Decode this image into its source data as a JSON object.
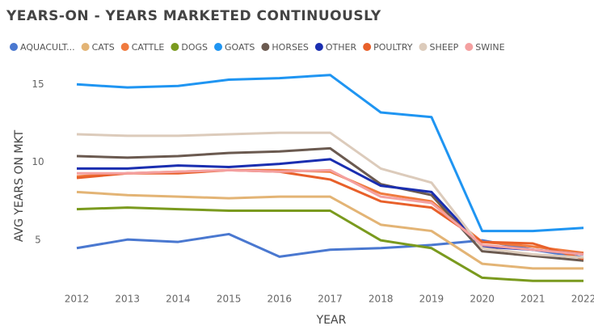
{
  "chart_data": {
    "type": "line",
    "title": "YEARS-ON - YEARS MARKETED CONTINUOUSLY",
    "x_label": "YEAR",
    "y_label": "AVG YEARS ON MKT",
    "x": [
      2012,
      2013,
      2014,
      2015,
      2016,
      2017,
      2018,
      2019,
      2020,
      2021,
      2022
    ],
    "xlim": [
      2012,
      2022
    ],
    "xticks": [
      2012,
      2013,
      2014,
      2015,
      2016,
      2017,
      2018,
      2019,
      2020,
      2021,
      2022
    ],
    "ylim": [
      2,
      16
    ],
    "yticks": [
      5,
      10,
      15
    ],
    "grid": false,
    "series": [
      {
        "name": "AQUACULT...",
        "color": "#4a78d0",
        "values": [
          4.5,
          5.05,
          4.9,
          5.4,
          3.95,
          4.4,
          4.5,
          4.7,
          5.0,
          4.4,
          3.9
        ]
      },
      {
        "name": "CATS",
        "color": "#e3b475",
        "values": [
          8.1,
          7.9,
          7.8,
          7.7,
          7.8,
          7.8,
          6.0,
          5.6,
          3.5,
          3.2,
          3.2
        ]
      },
      {
        "name": "CATTLE",
        "color": "#f07a3e",
        "values": [
          9.1,
          9.3,
          9.4,
          9.5,
          9.5,
          9.4,
          8.0,
          7.5,
          4.9,
          4.6,
          4.2
        ]
      },
      {
        "name": "DOGS",
        "color": "#7a9a1e",
        "values": [
          7.0,
          7.1,
          7.0,
          6.9,
          6.9,
          6.9,
          5.0,
          4.5,
          2.6,
          2.4,
          2.4
        ]
      },
      {
        "name": "GOATS",
        "color": "#1f95f2",
        "values": [
          15.0,
          14.8,
          14.9,
          15.3,
          15.4,
          15.6,
          13.2,
          12.9,
          5.6,
          5.6,
          5.8
        ]
      },
      {
        "name": "HORSES",
        "color": "#6b5a50",
        "values": [
          10.4,
          10.3,
          10.4,
          10.6,
          10.7,
          10.9,
          8.6,
          7.9,
          4.3,
          4.0,
          3.7
        ]
      },
      {
        "name": "OTHER",
        "color": "#1a2eb0",
        "values": [
          9.6,
          9.6,
          9.8,
          9.7,
          9.9,
          10.2,
          8.5,
          8.1,
          4.6,
          4.4,
          4.1
        ]
      },
      {
        "name": "POULTRY",
        "color": "#e8602a",
        "values": [
          9.0,
          9.3,
          9.3,
          9.5,
          9.4,
          8.9,
          7.5,
          7.1,
          4.9,
          4.8,
          3.8
        ]
      },
      {
        "name": "SHEEP",
        "color": "#dccbbb",
        "values": [
          11.8,
          11.7,
          11.7,
          11.8,
          11.9,
          11.9,
          9.6,
          8.7,
          4.5,
          4.1,
          3.9
        ]
      },
      {
        "name": "SWINE",
        "color": "#f4a0a0",
        "values": [
          9.3,
          9.3,
          9.4,
          9.5,
          9.4,
          9.5,
          7.8,
          7.4,
          4.7,
          4.4,
          4.1
        ]
      }
    ]
  }
}
